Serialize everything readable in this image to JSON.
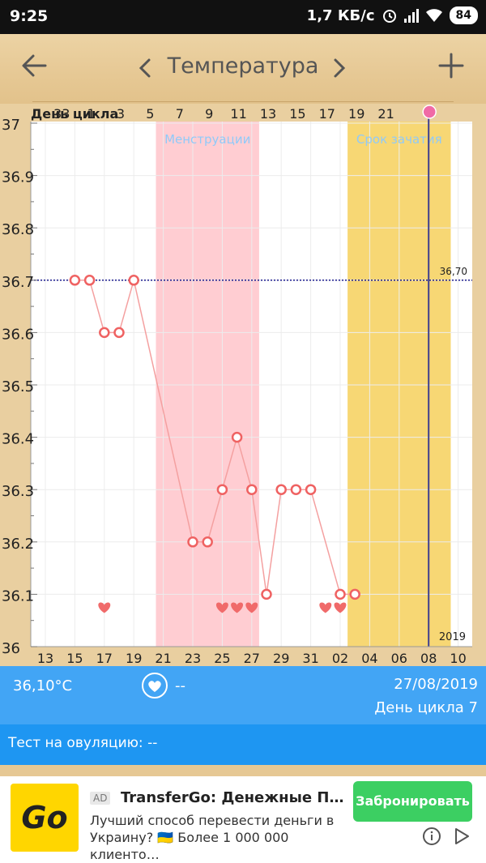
{
  "status_bar": {
    "time": "9:25",
    "speed": "1,7 КБ/с",
    "battery": "84"
  },
  "header": {
    "title": "Температура"
  },
  "chart_data": {
    "type": "line",
    "y_axis": {
      "min": 36,
      "max": 37,
      "ticks": [
        "37",
        "36.9",
        "36.8",
        "36.7",
        "36.6",
        "36.5",
        "36.4",
        "36.3",
        "36.2",
        "36.1",
        "36"
      ]
    },
    "top_axis_label": "День цикла",
    "top_axis": [
      {
        "label": "33",
        "day": 1
      },
      {
        "label": "1",
        "day": 3
      },
      {
        "label": "3",
        "day": 5
      },
      {
        "label": "5",
        "day": 7
      },
      {
        "label": "7",
        "day": 9
      },
      {
        "label": "9",
        "day": 11
      },
      {
        "label": "11",
        "day": 13
      },
      {
        "label": "13",
        "day": 15
      },
      {
        "label": "15",
        "day": 17
      },
      {
        "label": "17",
        "day": 19
      },
      {
        "label": "19",
        "day": 21
      },
      {
        "label": "21",
        "day": 23
      }
    ],
    "bottom_axis": [
      {
        "label": "13",
        "day": 0
      },
      {
        "label": "15",
        "day": 2
      },
      {
        "label": "17",
        "day": 4
      },
      {
        "label": "19",
        "day": 6
      },
      {
        "label": "21",
        "day": 8
      },
      {
        "label": "23",
        "day": 10
      },
      {
        "label": "25",
        "day": 12
      },
      {
        "label": "27",
        "day": 14
      },
      {
        "label": "29",
        "day": 16
      },
      {
        "label": "31",
        "day": 18
      },
      {
        "label": "02",
        "day": 20
      },
      {
        "label": "04",
        "day": 22
      },
      {
        "label": "06",
        "day": 24
      },
      {
        "label": "08",
        "day": 26
      },
      {
        "label": "10",
        "day": 28
      }
    ],
    "year_label": "2019",
    "reference_line": {
      "value": 36.7,
      "label": "36,70"
    },
    "bands": [
      {
        "name": "Менструации",
        "from_day": 8,
        "to_day": 15,
        "color": "#ffcdd2",
        "label_color": "#90caf9"
      },
      {
        "name": "Срок зачатия",
        "from_day": 21,
        "to_day": 28,
        "color": "#f7d774",
        "label_color": "#90caf9"
      }
    ],
    "today_day": 26,
    "today_color": "#3f3f8f",
    "series": [
      {
        "x": [
          2,
          3,
          4,
          5,
          6,
          10,
          11,
          12,
          13,
          14,
          15,
          16,
          17,
          18,
          19,
          20,
          21
        ],
        "y": [
          36.7,
          36.7,
          36.6,
          36.6,
          36.7,
          36.2,
          36.2,
          36.3,
          36.4,
          36.3,
          36.1,
          36.3,
          36.3,
          36.3,
          null,
          36.1,
          36.1
        ],
        "color": "#f4a0a0",
        "marker_color": "#ef6262"
      }
    ],
    "hearts_days": [
      4,
      12,
      13,
      14,
      19,
      20
    ],
    "heart_color": "#f06a6a"
  },
  "info": {
    "temperature": "36,10°C",
    "sex": "--",
    "date": "27/08/2019",
    "cycle_day": "День цикла 7",
    "ovulation_test": "Тест на овуляцию: --"
  },
  "ad": {
    "logo_text": "Go",
    "badge": "AD",
    "title": "TransferGo: Денежные Пере…",
    "text": "Лучший способ перевести деньги в Украину? 🇺🇦 Более 1 000 000 клиенто…",
    "cta": "Забронировать"
  }
}
